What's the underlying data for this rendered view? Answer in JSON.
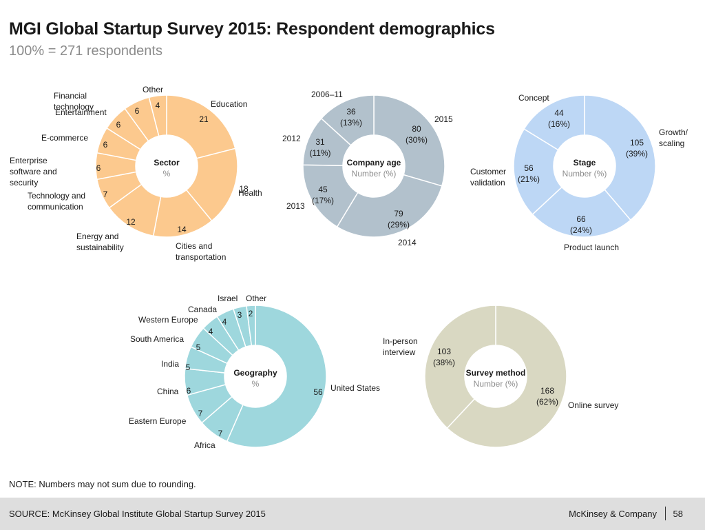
{
  "title": "MGI Global Startup Survey 2015: Respondent demographics",
  "subtitle": "100% = 271 respondents",
  "note": "NOTE: Numbers may not sum due to rounding.",
  "footer": {
    "source": "SOURCE: McKinsey Global Institute Global Startup Survey 2015",
    "brand": "McKinsey & Company",
    "page_number": "58"
  },
  "chart_data": [
    {
      "type": "pie",
      "title": "Sector",
      "subtitle": "%",
      "color": "#fcc98e",
      "slices": [
        {
          "label": "Education",
          "value": 21,
          "value_label": "21"
        },
        {
          "label": "Health",
          "value": 18,
          "value_label": "18"
        },
        {
          "label": "Cities and transportation",
          "value": 14,
          "value_label": "14"
        },
        {
          "label": "Energy and sustainability",
          "value": 12,
          "value_label": "12"
        },
        {
          "label": "Technology and communication",
          "value": 7,
          "value_label": "7"
        },
        {
          "label": "Enterprise software and security",
          "value": 6,
          "value_label": "6"
        },
        {
          "label": "E-commerce",
          "value": 6,
          "value_label": "6"
        },
        {
          "label": "Entertainment",
          "value": 6,
          "value_label": "6"
        },
        {
          "label": "Financial technology",
          "value": 6,
          "value_label": "6"
        },
        {
          "label": "Other",
          "value": 4,
          "value_label": "4"
        }
      ]
    },
    {
      "type": "pie",
      "title": "Company age",
      "subtitle": "Number (%)",
      "color": "#b2c1cc",
      "slices": [
        {
          "label": "2015",
          "value": 80,
          "value_label": "80",
          "pct_label": "(30%)"
        },
        {
          "label": "2014",
          "value": 79,
          "value_label": "79",
          "pct_label": "(29%)"
        },
        {
          "label": "2013",
          "value": 45,
          "value_label": "45",
          "pct_label": "(17%)"
        },
        {
          "label": "2012",
          "value": 31,
          "value_label": "31",
          "pct_label": "(11%)"
        },
        {
          "label": "2006–11",
          "value": 36,
          "value_label": "36",
          "pct_label": "(13%)"
        }
      ]
    },
    {
      "type": "pie",
      "title": "Stage",
      "subtitle": "Number (%)",
      "color": "#bdd7f5",
      "slices": [
        {
          "label": "Growth/ scaling",
          "value": 105,
          "value_label": "105",
          "pct_label": "(39%)"
        },
        {
          "label": "Product launch",
          "value": 66,
          "value_label": "66",
          "pct_label": "(24%)"
        },
        {
          "label": "Customer validation",
          "value": 56,
          "value_label": "56",
          "pct_label": "(21%)"
        },
        {
          "label": "Concept",
          "value": 44,
          "value_label": "44",
          "pct_label": "(16%)"
        }
      ]
    },
    {
      "type": "pie",
      "title": "Geography",
      "subtitle": "%",
      "color": "#9ed7dd",
      "slices": [
        {
          "label": "United States",
          "value": 56,
          "value_label": "56"
        },
        {
          "label": "Africa",
          "value": 7,
          "value_label": "7"
        },
        {
          "label": "Eastern Europe",
          "value": 7,
          "value_label": "7"
        },
        {
          "label": "China",
          "value": 6,
          "value_label": "6"
        },
        {
          "label": "India",
          "value": 5,
          "value_label": "5"
        },
        {
          "label": "South America",
          "value": 5,
          "value_label": "5"
        },
        {
          "label": "Western Europe",
          "value": 4,
          "value_label": "4"
        },
        {
          "label": "Canada",
          "value": 4,
          "value_label": "4"
        },
        {
          "label": "Israel",
          "value": 3,
          "value_label": "3"
        },
        {
          "label": "Other",
          "value": 2,
          "value_label": "2"
        }
      ]
    },
    {
      "type": "pie",
      "title": "Survey method",
      "subtitle": "Number (%)",
      "color": "#d9d8c2",
      "slices": [
        {
          "label": "Online survey",
          "value": 168,
          "value_label": "168",
          "pct_label": "(62%)"
        },
        {
          "label": "In-person interview",
          "value": 103,
          "value_label": "103",
          "pct_label": "(38%)"
        }
      ]
    }
  ]
}
